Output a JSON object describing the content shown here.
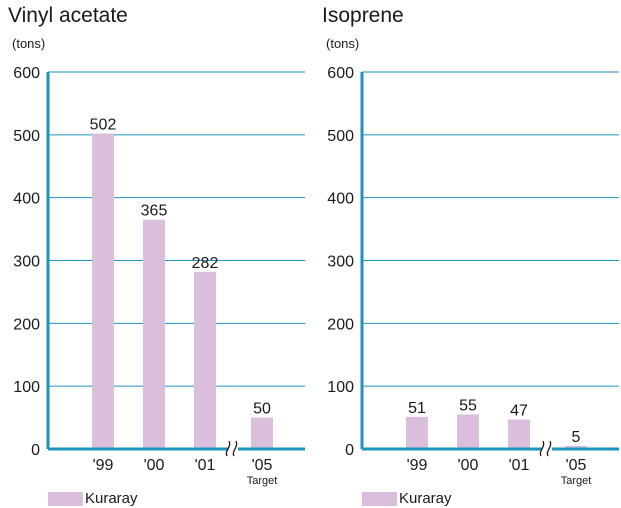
{
  "colors": {
    "axis": "#1e94bd",
    "bar": "#d9bfdb",
    "text": "#1a1a1a"
  },
  "chart_data": [
    {
      "type": "bar",
      "title": "Vinyl acetate",
      "unit": "(tons)",
      "categories": [
        "'99",
        "'00",
        "'01",
        "'05"
      ],
      "category_sublabels": [
        "",
        "",
        "",
        "Target"
      ],
      "values": [
        502,
        365,
        282,
        50
      ],
      "data_labels": [
        "502",
        "365",
        "282",
        "50"
      ],
      "ylim": [
        0,
        600
      ],
      "yticks": [
        "0",
        "100",
        "200",
        "300",
        "400",
        "500",
        "600"
      ],
      "grid": true,
      "axis_break_before_last": true,
      "legend": {
        "label": "Kuraray",
        "position": "bottom-left"
      }
    },
    {
      "type": "bar",
      "title": "Isoprene",
      "unit": "(tons)",
      "categories": [
        "'99",
        "'00",
        "'01",
        "'05"
      ],
      "category_sublabels": [
        "",
        "",
        "",
        "Target"
      ],
      "values": [
        51,
        55,
        47,
        5
      ],
      "data_labels": [
        "51",
        "55",
        "47",
        "5"
      ],
      "ylim": [
        0,
        600
      ],
      "yticks": [
        "0",
        "100",
        "200",
        "300",
        "400",
        "500",
        "600"
      ],
      "grid": true,
      "axis_break_before_last": true,
      "legend": {
        "label": "Kuraray",
        "position": "bottom-left"
      }
    }
  ]
}
